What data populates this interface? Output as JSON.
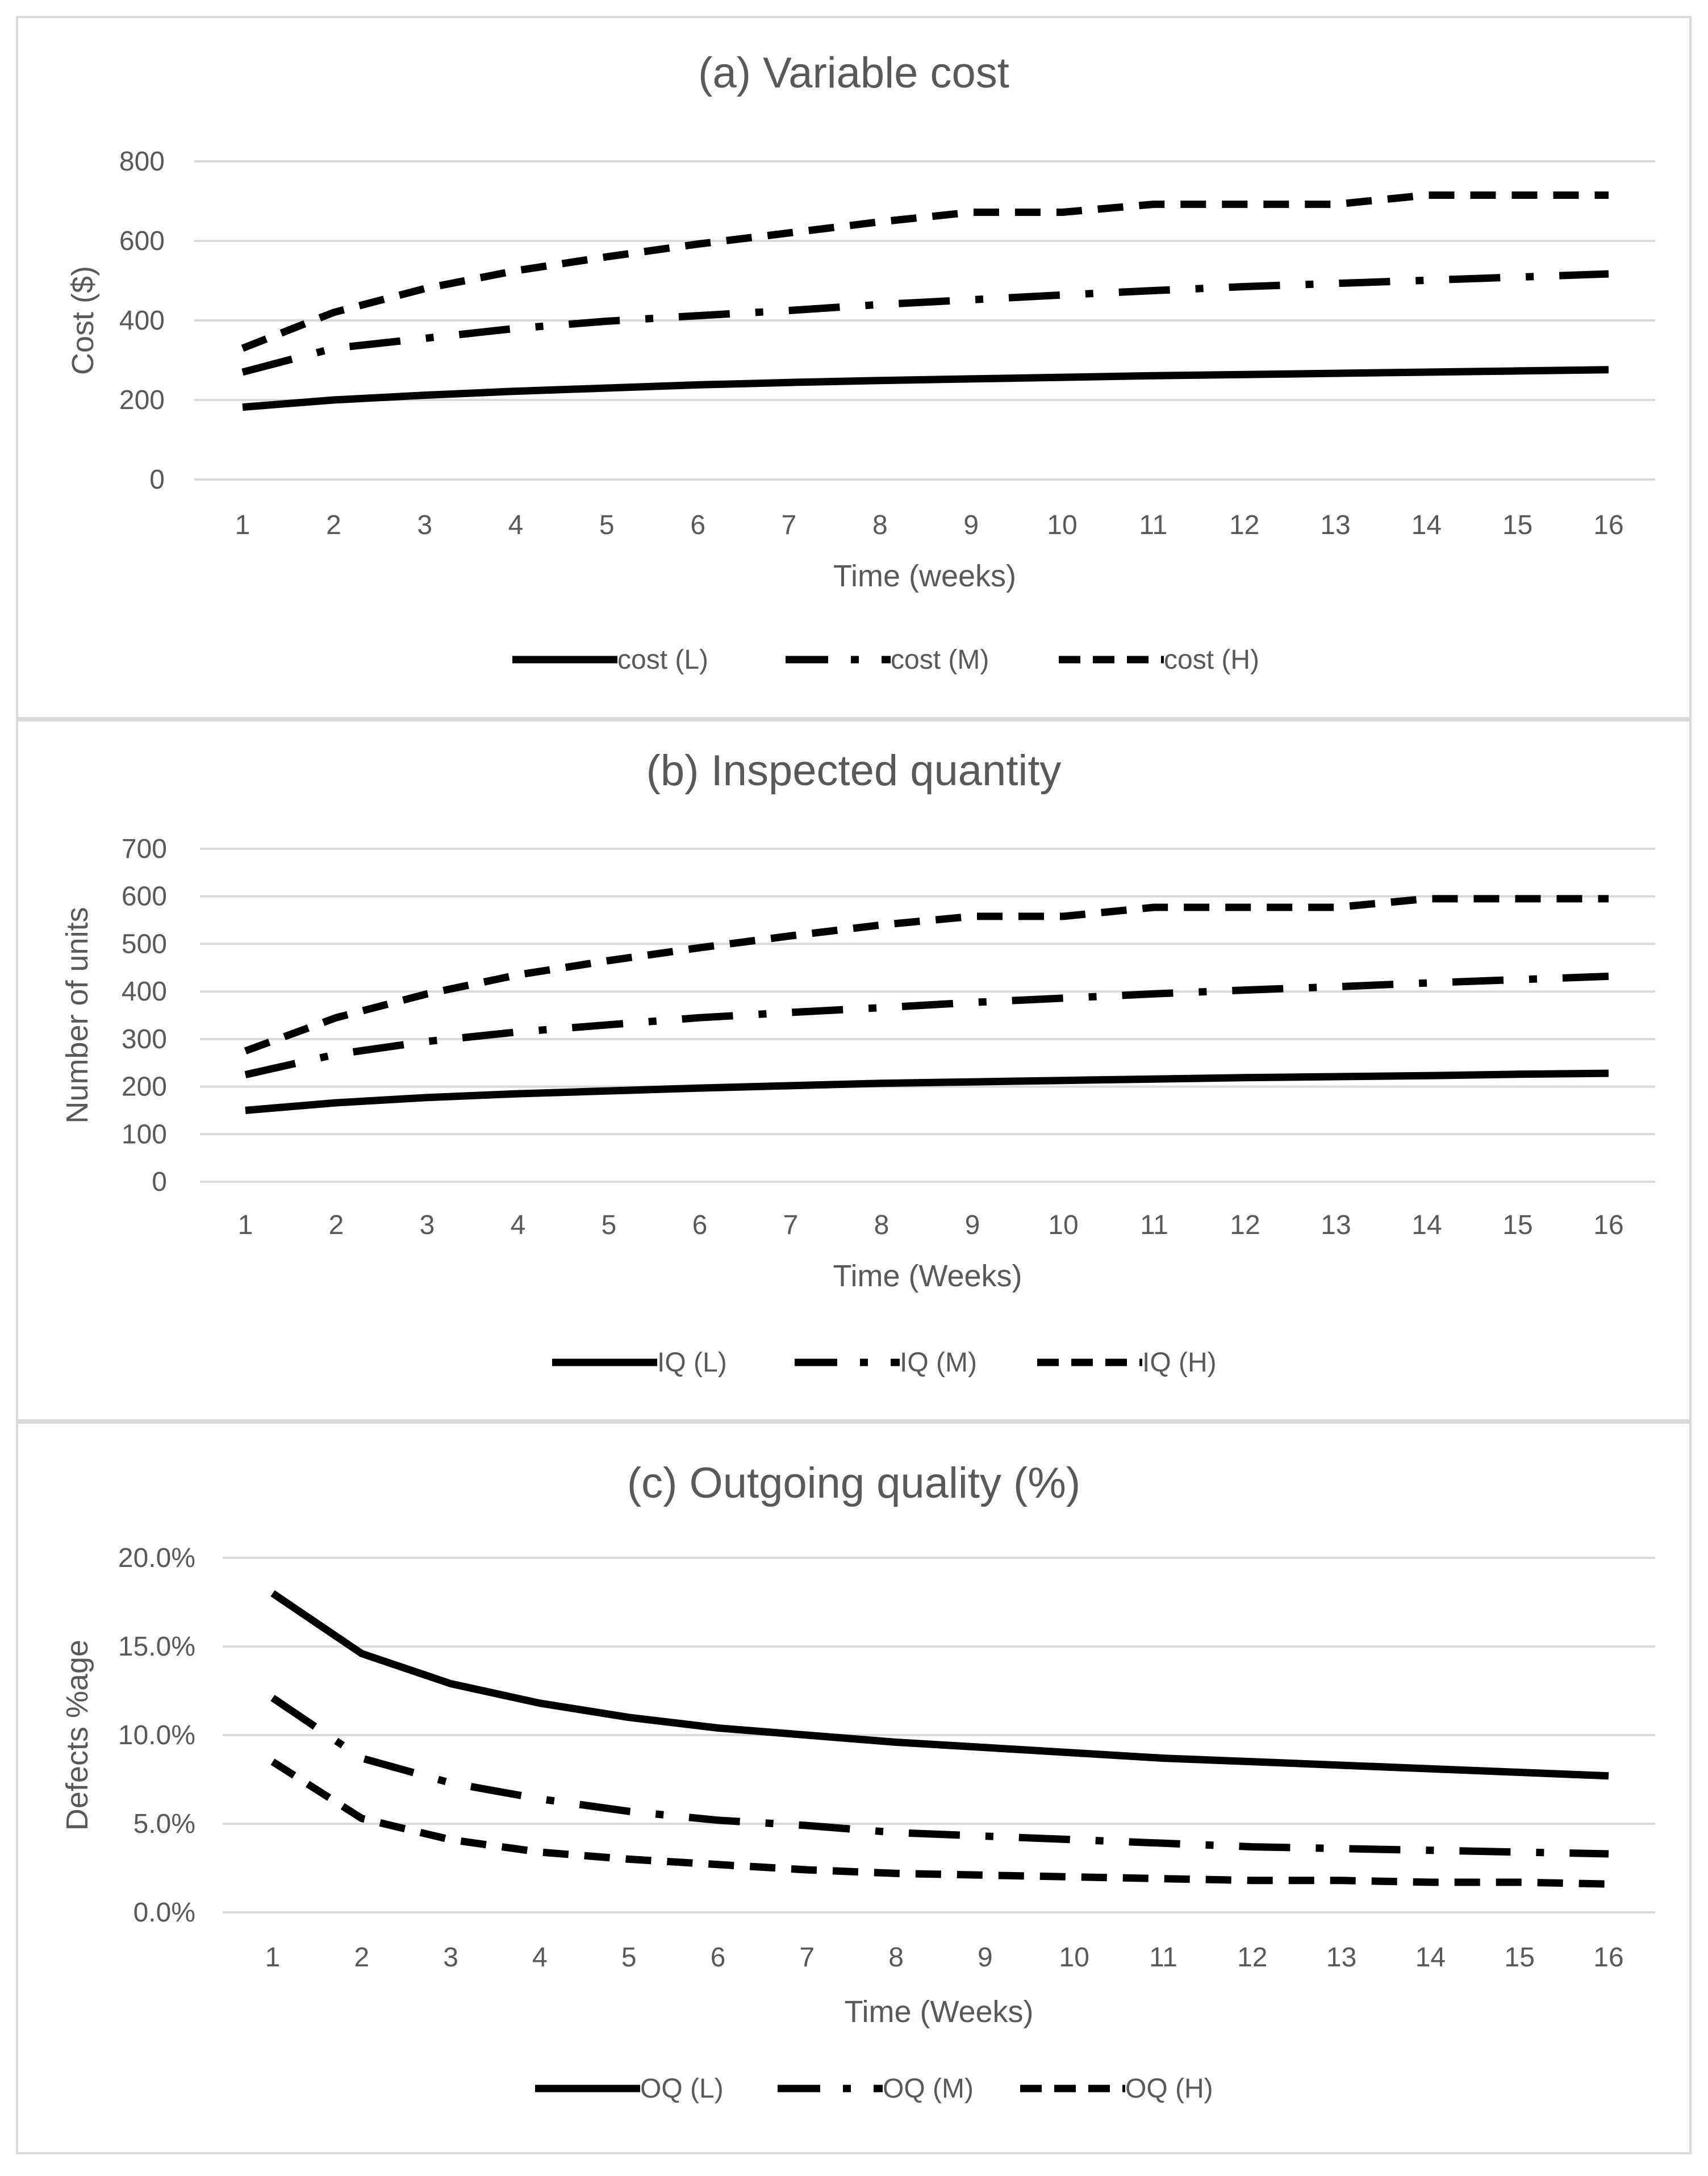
{
  "chart_data": [
    {
      "type": "line",
      "title": "(a) Variable cost",
      "xlabel": "Time (weeks)",
      "ylabel": "Cost ($)",
      "ylim": [
        0,
        800
      ],
      "yticks": [
        0,
        200,
        400,
        600,
        800
      ],
      "ytick_labels": [
        "0",
        "200",
        "400",
        "600",
        "800"
      ],
      "categories": [
        "1",
        "2",
        "3",
        "4",
        "5",
        "6",
        "7",
        "8",
        "9",
        "10",
        "11",
        "12",
        "13",
        "14",
        "15",
        "16"
      ],
      "series": [
        {
          "name": "cost (L)",
          "style": "solid",
          "values": [
            182,
            200,
            212,
            222,
            230,
            238,
            244,
            249,
            253,
            257,
            261,
            264,
            267,
            270,
            273,
            276
          ]
        },
        {
          "name": "cost (M)",
          "style": "dashdot",
          "values": [
            270,
            330,
            355,
            380,
            398,
            412,
            425,
            440,
            452,
            464,
            475,
            485,
            493,
            501,
            509,
            517
          ]
        },
        {
          "name": "cost (H)",
          "style": "dashed",
          "values": [
            330,
            420,
            480,
            525,
            560,
            592,
            620,
            648,
            672,
            672,
            692,
            692,
            692,
            715,
            715,
            715
          ]
        }
      ],
      "legend": "bottom"
    },
    {
      "type": "line",
      "title": "(b) Inspected quantity",
      "xlabel": "Time (Weeks)",
      "ylabel": "Number of units",
      "ylim": [
        0,
        700
      ],
      "yticks": [
        0,
        100,
        200,
        300,
        400,
        500,
        600,
        700
      ],
      "ytick_labels": [
        "0",
        "100",
        "200",
        "300",
        "400",
        "500",
        "600",
        "700"
      ],
      "categories": [
        "1",
        "2",
        "3",
        "4",
        "5",
        "6",
        "7",
        "8",
        "9",
        "10",
        "11",
        "12",
        "13",
        "14",
        "15",
        "16"
      ],
      "series": [
        {
          "name": "IQ (L)",
          "style": "solid",
          "values": [
            150,
            166,
            177,
            185,
            191,
            197,
            202,
            207,
            210,
            213,
            216,
            219,
            221,
            223,
            226,
            228
          ]
        },
        {
          "name": "IQ (M)",
          "style": "dashdot",
          "values": [
            225,
            268,
            295,
            315,
            330,
            345,
            356,
            366,
            377,
            386,
            395,
            403,
            410,
            418,
            425,
            432
          ]
        },
        {
          "name": "IQ (H)",
          "style": "dashed",
          "values": [
            275,
            345,
            395,
            435,
            465,
            492,
            517,
            540,
            558,
            558,
            577,
            577,
            577,
            595,
            595,
            595
          ]
        }
      ],
      "legend": "bottom"
    },
    {
      "type": "line",
      "title": "(c) Outgoing quality (%)",
      "xlabel": "Time (Weeks)",
      "ylabel": "Defects %age",
      "ylim": [
        0,
        20
      ],
      "yticks": [
        0,
        5,
        10,
        15,
        20
      ],
      "ytick_labels": [
        "0.0%",
        "5.0%",
        "10.0%",
        "15.0%",
        "20.0%"
      ],
      "categories": [
        "1",
        "2",
        "3",
        "4",
        "5",
        "6",
        "7",
        "8",
        "9",
        "10",
        "11",
        "12",
        "13",
        "14",
        "15",
        "16"
      ],
      "series": [
        {
          "name": "OQ (L)",
          "style": "solid",
          "values": [
            18.0,
            14.6,
            12.9,
            11.8,
            11.0,
            10.4,
            10.0,
            9.6,
            9.3,
            9.0,
            8.7,
            8.5,
            8.3,
            8.1,
            7.9,
            7.7
          ]
        },
        {
          "name": "OQ (M)",
          "style": "dashdot",
          "values": [
            12.1,
            8.7,
            7.3,
            6.4,
            5.7,
            5.2,
            4.9,
            4.5,
            4.3,
            4.1,
            3.9,
            3.7,
            3.6,
            3.5,
            3.4,
            3.3
          ]
        },
        {
          "name": "OQ (H)",
          "style": "dashed",
          "values": [
            8.5,
            5.3,
            4.1,
            3.4,
            3.0,
            2.7,
            2.4,
            2.2,
            2.1,
            2.0,
            1.9,
            1.8,
            1.8,
            1.7,
            1.7,
            1.6
          ]
        }
      ],
      "legend": "bottom"
    }
  ]
}
